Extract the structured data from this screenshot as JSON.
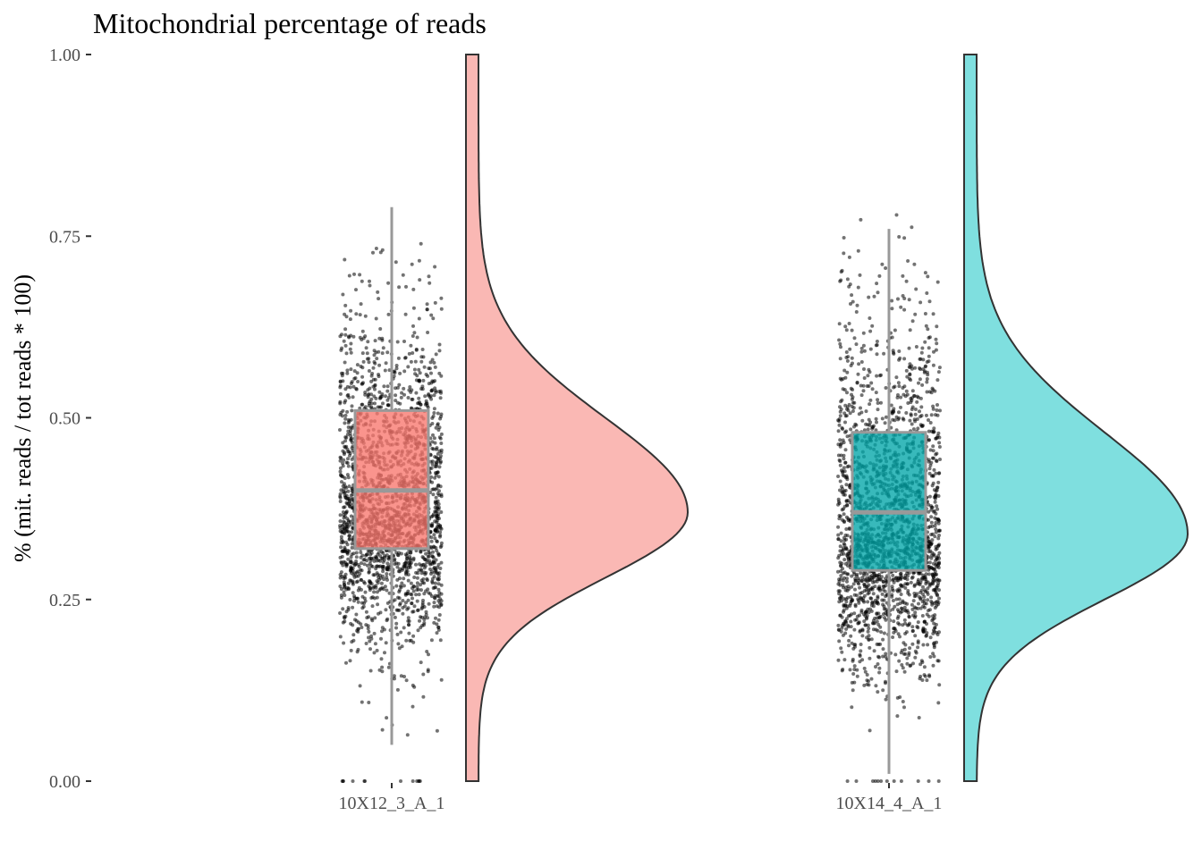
{
  "chart_data": {
    "type": "raincloud",
    "title": "Mitochondrial percentage of reads",
    "xlabel": "",
    "ylabel": "% (mit. reads / tot reads * 100)",
    "ylim": [
      0,
      1
    ],
    "yticks": [
      "0.00",
      "0.25",
      "0.50",
      "0.75",
      "1.00"
    ],
    "ytick_values": [
      0,
      0.25,
      0.5,
      0.75,
      1.0
    ],
    "grid": false,
    "legend": "none",
    "categories": [
      "10X12_3_A_1",
      "10X14_4_A_1"
    ],
    "series": [
      {
        "category": "10X12_3_A_1",
        "color": "#F8766D",
        "density_fill": "#FAB8B4",
        "box": {
          "q1": 0.32,
          "median": 0.4,
          "q3": 0.51,
          "whisker_low": 0.05,
          "whisker_high": 0.79
        },
        "density_peak": 0.37,
        "density_sd_below": 0.09,
        "density_sd_above": 0.13
      },
      {
        "category": "10X14_4_A_1",
        "color": "#00A5A8",
        "density_fill": "#7FDFDF",
        "box": {
          "q1": 0.29,
          "median": 0.37,
          "q3": 0.48,
          "whisker_low": 0.01,
          "whisker_high": 0.76
        },
        "density_peak": 0.34,
        "density_sd_below": 0.09,
        "density_sd_above": 0.14
      }
    ]
  }
}
